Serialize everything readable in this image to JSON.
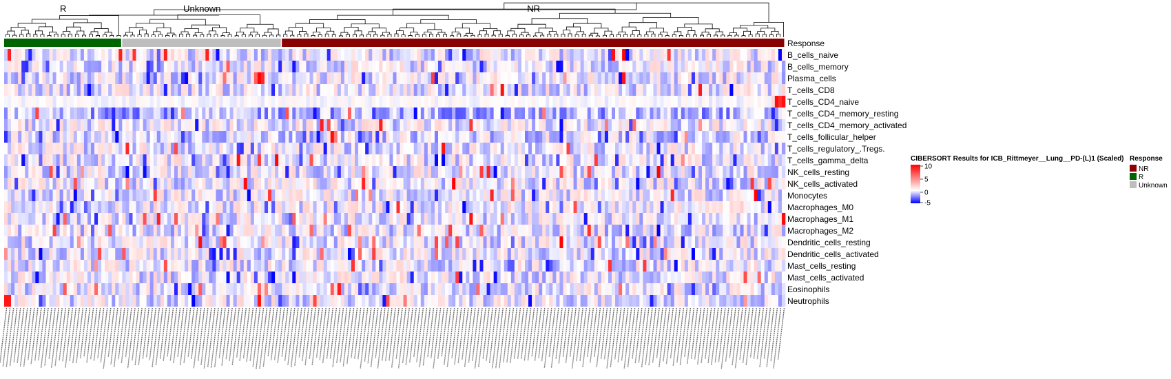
{
  "chart_data": {
    "type": "heatmap",
    "title": "CIBERSORT Results for ICB_Rittmeyer__Lung__PD-(L)1 (Scaled)",
    "column_groups": [
      {
        "name": "R",
        "n_samples": 34,
        "color": "#006400"
      },
      {
        "name": "Unknown",
        "n_samples": 46,
        "color": "#BEBEBE"
      },
      {
        "name": "NR",
        "n_samples": 145,
        "color": "#8B0000"
      }
    ],
    "annotation_track": "Response",
    "rows": [
      "B_cells_naive",
      "B_cells_memory",
      "Plasma_cells",
      "T_cells_CD8",
      "T_cells_CD4_naive",
      "T_cells_CD4_memory_resting",
      "T_cells_CD4_memory_activated",
      "T_cells_follicular_helper",
      "T_cells_regulatory_.Tregs.",
      "T_cells_gamma_delta",
      "NK_cells_resting",
      "NK_cells_activated",
      "Monocytes",
      "Macrophages_M0",
      "Macrophages_M1",
      "Macrophages_M2",
      "Dendritic_cells_resting",
      "Dendritic_cells_activated",
      "Mast_cells_resting",
      "Mast_cells_activated",
      "Eosinophils",
      "Neutrophils"
    ],
    "color_scale": {
      "min": -5,
      "max": 10,
      "stops": [
        {
          "value": -5,
          "color": "#0000FF"
        },
        {
          "value": 0,
          "color": "#FFFFFF"
        },
        {
          "value": 10,
          "color": "#FF0000"
        }
      ],
      "ticks": [
        "10",
        "5",
        "0",
        "-5"
      ]
    },
    "legend": {
      "title": "Response",
      "items": [
        {
          "label": "NR",
          "color": "#8B0000"
        },
        {
          "label": "R",
          "color": "#006400"
        },
        {
          "label": "Unknown",
          "color": "#BEBEBE"
        }
      ]
    },
    "dendrogram": true,
    "column_labels_visible": true
  }
}
